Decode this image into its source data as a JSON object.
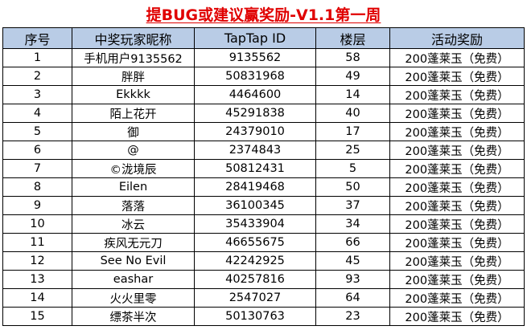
{
  "title": "提BUG或建议赢奖励-V1.1第一周",
  "table": {
    "headers": [
      "序号",
      "中奖玩家昵称",
      "TapTap ID",
      "楼层",
      "活动奖励"
    ],
    "rows": [
      {
        "rank": "1",
        "nickname": "手机用户9135562",
        "taptap_id": "9135562",
        "floor": "58",
        "reward": "200蓬莱玉（免费）"
      },
      {
        "rank": "2",
        "nickname": "胖胖",
        "taptap_id": "50831968",
        "floor": "49",
        "reward": "200蓬莱玉（免费）"
      },
      {
        "rank": "3",
        "nickname": "Ekkkk",
        "taptap_id": "4464600",
        "floor": "14",
        "reward": "200蓬莱玉（免费）"
      },
      {
        "rank": "4",
        "nickname": "陌上花开",
        "taptap_id": "45291838",
        "floor": "40",
        "reward": "200蓬莱玉（免费）"
      },
      {
        "rank": "5",
        "nickname": "御",
        "taptap_id": "24379010",
        "floor": "17",
        "reward": "200蓬莱玉（免费）"
      },
      {
        "rank": "6",
        "nickname": "@",
        "taptap_id": "2374843",
        "floor": "25",
        "reward": "200蓬莱玉（免费）"
      },
      {
        "rank": "7",
        "nickname": "©泷境辰",
        "taptap_id": "50812431",
        "floor": "5",
        "reward": "200蓬莱玉（免费）"
      },
      {
        "rank": "8",
        "nickname": "Eilen",
        "taptap_id": "28419468",
        "floor": "50",
        "reward": "200蓬莱玉（免费）"
      },
      {
        "rank": "9",
        "nickname": "落落",
        "taptap_id": "36100345",
        "floor": "37",
        "reward": "200蓬莱玉（免费）"
      },
      {
        "rank": "10",
        "nickname": "冰云",
        "taptap_id": "35433904",
        "floor": "34",
        "reward": "200蓬莱玉（免费）"
      },
      {
        "rank": "11",
        "nickname": "疾风无元刀",
        "taptap_id": "46655675",
        "floor": "66",
        "reward": "200蓬莱玉（免费）"
      },
      {
        "rank": "12",
        "nickname": "See No Evil",
        "taptap_id": "42242925",
        "floor": "45",
        "reward": "200蓬莱玉（免费）"
      },
      {
        "rank": "13",
        "nickname": "eashar",
        "taptap_id": "40257816",
        "floor": "93",
        "reward": "200蓬莱玉（免费）"
      },
      {
        "rank": "14",
        "nickname": "火火里零",
        "taptap_id": "2547027",
        "floor": "64",
        "reward": "200蓬莱玉（免费）"
      },
      {
        "rank": "15",
        "nickname": "缥茶半次",
        "taptap_id": "50130763",
        "floor": "23",
        "reward": "200蓬莱玉（免费）"
      }
    ]
  },
  "colors": {
    "title": "#e00000",
    "header_background": "#b9cce6",
    "border": "#000000"
  }
}
